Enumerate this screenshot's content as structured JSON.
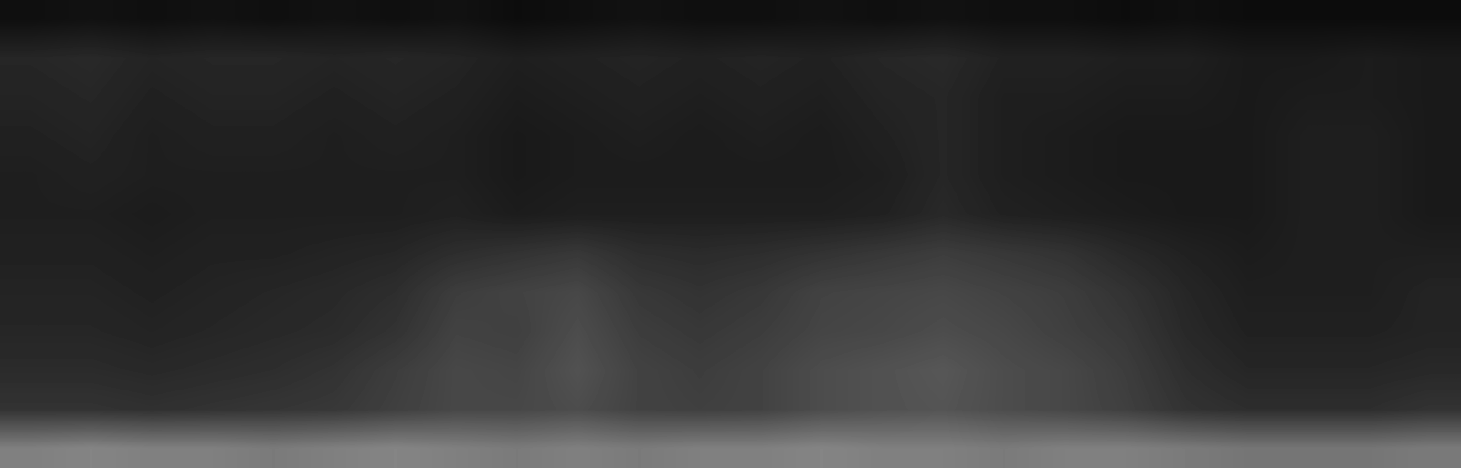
{
  "chart_data": {
    "type": "spectrogram",
    "tick_labels": false,
    "zlim": [
      0,
      1
    ],
    "cells": [
      [
        0.06,
        0.07,
        0.06,
        0.07,
        0.06,
        0.07,
        0.06,
        0.07,
        0.05,
        0.06,
        0.07,
        0.06,
        0.06,
        0.07,
        0.06,
        0.07,
        0.06,
        0.06,
        0.05,
        0.06,
        0.05,
        0.05,
        0.05,
        0.05
      ],
      [
        0.15,
        0.16,
        0.14,
        0.15,
        0.15,
        0.14,
        0.15,
        0.14,
        0.12,
        0.13,
        0.14,
        0.13,
        0.14,
        0.13,
        0.15,
        0.16,
        0.13,
        0.13,
        0.12,
        0.12,
        0.1,
        0.1,
        0.11,
        0.1
      ],
      [
        0.14,
        0.15,
        0.13,
        0.14,
        0.14,
        0.13,
        0.14,
        0.13,
        0.11,
        0.12,
        0.13,
        0.12,
        0.13,
        0.12,
        0.14,
        0.15,
        0.12,
        0.12,
        0.11,
        0.11,
        0.1,
        0.11,
        0.11,
        0.1
      ],
      [
        0.13,
        0.14,
        0.12,
        0.13,
        0.13,
        0.12,
        0.13,
        0.12,
        0.1,
        0.11,
        0.12,
        0.11,
        0.12,
        0.11,
        0.13,
        0.15,
        0.12,
        0.11,
        0.1,
        0.1,
        0.1,
        0.12,
        0.12,
        0.1
      ],
      [
        0.12,
        0.13,
        0.12,
        0.12,
        0.12,
        0.12,
        0.12,
        0.12,
        0.1,
        0.11,
        0.11,
        0.11,
        0.11,
        0.11,
        0.12,
        0.15,
        0.12,
        0.11,
        0.1,
        0.1,
        0.1,
        0.12,
        0.12,
        0.1
      ],
      [
        0.12,
        0.12,
        0.11,
        0.12,
        0.12,
        0.12,
        0.12,
        0.13,
        0.11,
        0.12,
        0.12,
        0.12,
        0.12,
        0.12,
        0.13,
        0.16,
        0.13,
        0.12,
        0.11,
        0.1,
        0.1,
        0.12,
        0.12,
        0.1
      ],
      [
        0.13,
        0.13,
        0.12,
        0.13,
        0.13,
        0.14,
        0.15,
        0.18,
        0.2,
        0.22,
        0.18,
        0.17,
        0.18,
        0.2,
        0.22,
        0.24,
        0.22,
        0.2,
        0.16,
        0.13,
        0.11,
        0.12,
        0.12,
        0.12
      ],
      [
        0.14,
        0.14,
        0.13,
        0.14,
        0.15,
        0.16,
        0.18,
        0.24,
        0.26,
        0.28,
        0.22,
        0.2,
        0.22,
        0.26,
        0.27,
        0.28,
        0.26,
        0.24,
        0.2,
        0.15,
        0.12,
        0.12,
        0.12,
        0.14
      ],
      [
        0.15,
        0.15,
        0.14,
        0.15,
        0.16,
        0.17,
        0.2,
        0.26,
        0.25,
        0.3,
        0.24,
        0.22,
        0.24,
        0.27,
        0.28,
        0.3,
        0.28,
        0.25,
        0.22,
        0.16,
        0.13,
        0.13,
        0.13,
        0.14
      ],
      [
        0.17,
        0.17,
        0.16,
        0.17,
        0.18,
        0.2,
        0.24,
        0.28,
        0.27,
        0.32,
        0.26,
        0.24,
        0.26,
        0.3,
        0.32,
        0.34,
        0.3,
        0.28,
        0.24,
        0.18,
        0.15,
        0.15,
        0.15,
        0.16
      ],
      [
        0.2,
        0.2,
        0.19,
        0.2,
        0.21,
        0.22,
        0.25,
        0.28,
        0.28,
        0.3,
        0.26,
        0.25,
        0.26,
        0.3,
        0.32,
        0.33,
        0.3,
        0.28,
        0.25,
        0.2,
        0.18,
        0.18,
        0.18,
        0.2
      ],
      [
        0.5,
        0.52,
        0.5,
        0.5,
        0.48,
        0.5,
        0.52,
        0.5,
        0.48,
        0.5,
        0.48,
        0.5,
        0.5,
        0.52,
        0.5,
        0.5,
        0.48,
        0.5,
        0.5,
        0.48,
        0.46,
        0.46,
        0.46,
        0.48
      ]
    ]
  }
}
